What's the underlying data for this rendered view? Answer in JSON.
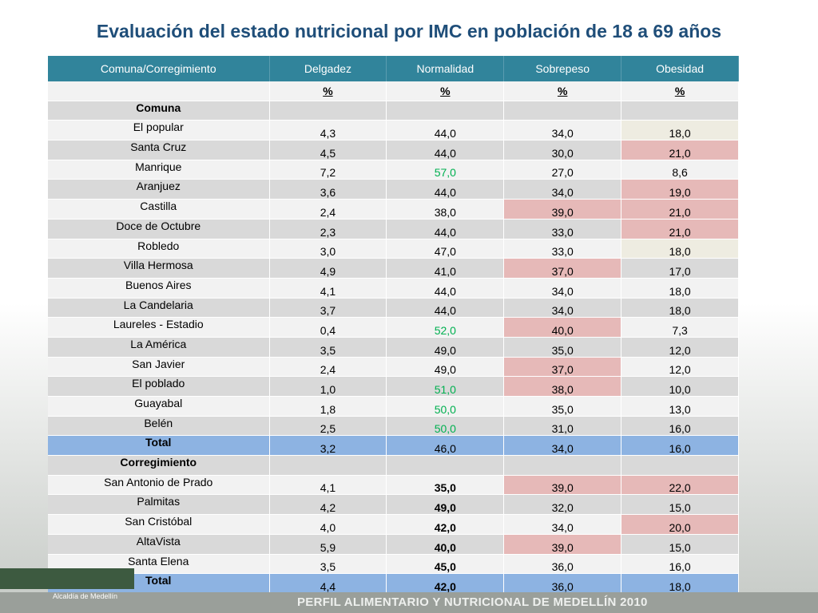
{
  "title": "Evaluación del estado nutricional por IMC en población de 18 a 69 años",
  "table": {
    "columns": [
      "Comuna/Corregimiento",
      "Delgadez",
      "Normalidad",
      "Sobrepeso",
      "Obesidad"
    ],
    "units": [
      "%",
      "%",
      "%",
      "%"
    ],
    "rows": [
      {
        "label": "Comuna",
        "label_bold": true
      },
      {
        "label": "El popular",
        "values": [
          "4,3",
          "44,0",
          "34,0",
          "18,0"
        ],
        "cell_colors": [
          null,
          null,
          null,
          "#eeece1"
        ]
      },
      {
        "label": "Santa Cruz",
        "values": [
          "4,5",
          "44,0",
          "30,0",
          "21,0"
        ],
        "cell_colors": [
          null,
          null,
          null,
          "#e6b9b8"
        ]
      },
      {
        "label": "Manrique",
        "values": [
          "7,2",
          "57,0",
          "27,0",
          "8,6"
        ],
        "text_colors": [
          null,
          "#00b050",
          null,
          null
        ]
      },
      {
        "label": "Aranjuez",
        "values": [
          "3,6",
          "44,0",
          "34,0",
          "19,0"
        ],
        "cell_colors": [
          null,
          null,
          null,
          "#e6b9b8"
        ]
      },
      {
        "label": "Castilla",
        "values": [
          "2,4",
          "38,0",
          "39,0",
          "21,0"
        ],
        "cell_colors": [
          null,
          null,
          "#e6b9b8",
          "#e6b9b8"
        ]
      },
      {
        "label": "Doce de Octubre",
        "values": [
          "2,3",
          "44,0",
          "33,0",
          "21,0"
        ],
        "cell_colors": [
          null,
          null,
          null,
          "#e6b9b8"
        ]
      },
      {
        "label": "Robledo",
        "values": [
          "3,0",
          "47,0",
          "33,0",
          "18,0"
        ],
        "cell_colors": [
          null,
          null,
          null,
          "#eeece1"
        ]
      },
      {
        "label": "Villa Hermosa",
        "values": [
          "4,9",
          "41,0",
          "37,0",
          "17,0"
        ],
        "cell_colors": [
          null,
          null,
          "#e6b9b8",
          null
        ]
      },
      {
        "label": "Buenos Aires",
        "values": [
          "4,1",
          "44,0",
          "34,0",
          "18,0"
        ]
      },
      {
        "label": "La Candelaria",
        "values": [
          "3,7",
          "44,0",
          "34,0",
          "18,0"
        ]
      },
      {
        "label": "Laureles - Estadio",
        "values": [
          "0,4",
          "52,0",
          "40,0",
          "7,3"
        ],
        "cell_colors": [
          null,
          null,
          "#e6b9b8",
          null
        ],
        "text_colors": [
          null,
          "#00b050",
          null,
          null
        ]
      },
      {
        "label": "La América",
        "values": [
          "3,5",
          "49,0",
          "35,0",
          "12,0"
        ]
      },
      {
        "label": "San Javier",
        "values": [
          "2,4",
          "49,0",
          "37,0",
          "12,0"
        ],
        "cell_colors": [
          null,
          null,
          "#e6b9b8",
          null
        ]
      },
      {
        "label": "El poblado",
        "values": [
          "1,0",
          "51,0",
          "38,0",
          "10,0"
        ],
        "cell_colors": [
          null,
          null,
          "#e6b9b8",
          null
        ],
        "text_colors": [
          null,
          "#00b050",
          null,
          null
        ]
      },
      {
        "label": "Guayabal",
        "values": [
          "1,8",
          "50,0",
          "35,0",
          "13,0"
        ],
        "text_colors": [
          null,
          "#00b050",
          null,
          null
        ]
      },
      {
        "label": "Belén",
        "values": [
          "2,5",
          "50,0",
          "31,0",
          "16,0"
        ],
        "text_colors": [
          null,
          "#00b050",
          null,
          null
        ]
      },
      {
        "label": "Total",
        "label_bold": true,
        "row_color": "#8db3e2",
        "values": [
          "3,2",
          "46,0",
          "34,0",
          "16,0"
        ]
      },
      {
        "label": "Corregimiento",
        "label_bold": true
      },
      {
        "label": "San Antonio de Prado",
        "values": [
          "4,1",
          "35,0",
          "39,0",
          "22,0"
        ],
        "cell_colors": [
          null,
          null,
          "#e6b9b8",
          "#e6b9b8"
        ],
        "bold": [
          false,
          true,
          false,
          false
        ]
      },
      {
        "label": "Palmitas",
        "values": [
          "4,2",
          "49,0",
          "32,0",
          "15,0"
        ],
        "bold": [
          false,
          true,
          false,
          false
        ]
      },
      {
        "label": "San Cristóbal",
        "values": [
          "4,0",
          "42,0",
          "34,0",
          "20,0"
        ],
        "cell_colors": [
          null,
          null,
          null,
          "#e6b9b8"
        ],
        "bold": [
          false,
          true,
          false,
          false
        ]
      },
      {
        "label": "AltaVista",
        "values": [
          "5,9",
          "40,0",
          "39,0",
          "15,0"
        ],
        "cell_colors": [
          null,
          null,
          "#e6b9b8",
          null
        ],
        "bold": [
          false,
          true,
          false,
          false
        ]
      },
      {
        "label": "Santa Elena",
        "values": [
          "3,5",
          "45,0",
          "36,0",
          "16,0"
        ],
        "bold": [
          false,
          true,
          false,
          false
        ]
      },
      {
        "label": "Total",
        "label_bold": true,
        "row_color": "#8db3e2",
        "values": [
          "4,4",
          "42,0",
          "36,0",
          "18,0"
        ],
        "bold": [
          false,
          true,
          false,
          false
        ]
      }
    ]
  },
  "footer": {
    "logo": "Alcaldía de Medellín",
    "text": "PERFIL ALIMENTARIO Y NUTRICIONAL DE MEDELLÍN 2010"
  }
}
